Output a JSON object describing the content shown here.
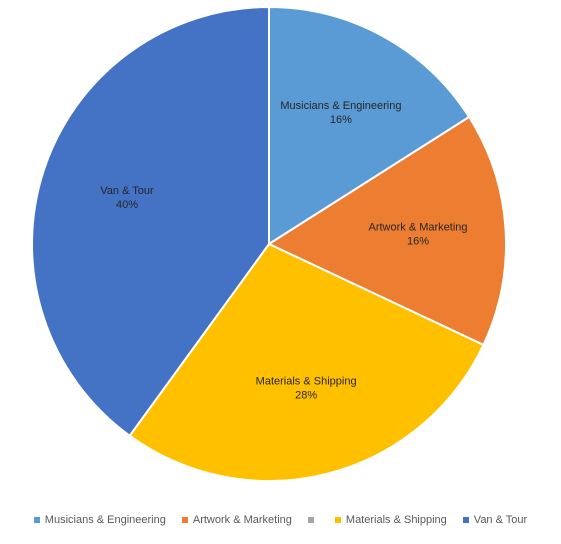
{
  "chart_data": {
    "type": "pie",
    "title": "",
    "categories": [
      "Musicians & Engineering",
      "Artwork & Marketing",
      "",
      "Materials & Shipping",
      "Van & Tour"
    ],
    "values": [
      16,
      16,
      0,
      28,
      40
    ],
    "value_labels": [
      "16%",
      "16%",
      "",
      "28%",
      "40%"
    ],
    "colors": [
      "#5b9bd5",
      "#ed7d31",
      "#a5a5a5",
      "#ffc000",
      "#4472c4"
    ],
    "legend_position": "bottom",
    "start_angle": "12 o'clock, clockwise"
  }
}
